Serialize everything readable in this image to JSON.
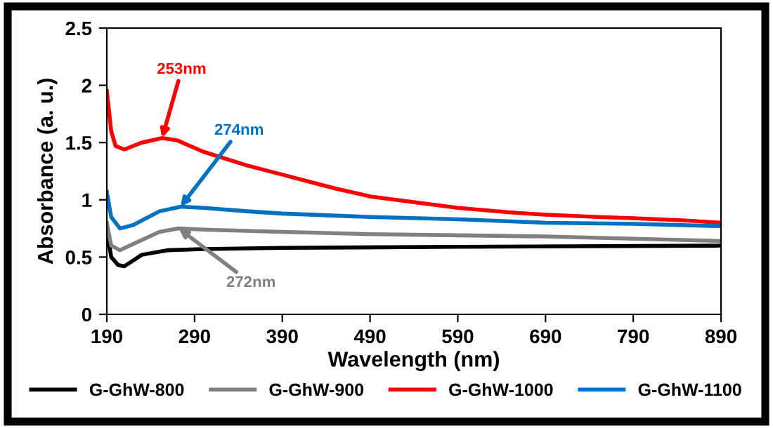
{
  "chart_data": {
    "type": "line",
    "xlabel": "Wavelength (nm)",
    "ylabel": "Absorbance (a. u.)",
    "xlim": [
      190,
      890
    ],
    "xticks": [
      190,
      290,
      390,
      490,
      590,
      690,
      790,
      890
    ],
    "ylim": [
      0,
      2.5
    ],
    "yticks": [
      0,
      0.5,
      1,
      1.5,
      2,
      2.5
    ],
    "grid": false,
    "legend": "bottom",
    "marker": "none",
    "line_style": "solid",
    "series": [
      {
        "name": "G-GhW-800",
        "color": "#000000",
        "x": [
          190,
          195,
          203,
          210,
          230,
          260,
          300,
          390,
          590,
          890
        ],
        "values": [
          0.75,
          0.5,
          0.43,
          0.42,
          0.52,
          0.56,
          0.57,
          0.58,
          0.59,
          0.6
        ]
      },
      {
        "name": "G-GhW-900",
        "color": "#808080",
        "x": [
          190,
          195,
          205,
          230,
          250,
          272,
          300,
          390,
          490,
          590,
          690,
          790,
          890
        ],
        "values": [
          0.8,
          0.6,
          0.56,
          0.65,
          0.72,
          0.75,
          0.74,
          0.72,
          0.7,
          0.69,
          0.68,
          0.66,
          0.64
        ]
      },
      {
        "name": "G-GhW-1000",
        "color": "#ff0000",
        "x": [
          190,
          195,
          200,
          210,
          230,
          253,
          270,
          300,
          350,
          390,
          450,
          490,
          550,
          590,
          650,
          690,
          750,
          790,
          850,
          890
        ],
        "values": [
          1.95,
          1.6,
          1.47,
          1.44,
          1.5,
          1.54,
          1.52,
          1.42,
          1.3,
          1.22,
          1.1,
          1.03,
          0.97,
          0.93,
          0.89,
          0.87,
          0.85,
          0.84,
          0.82,
          0.8
        ]
      },
      {
        "name": "G-GhW-1100",
        "color": "#0070c0",
        "x": [
          190,
          195,
          205,
          220,
          250,
          274,
          300,
          350,
          390,
          490,
          590,
          690,
          790,
          890
        ],
        "values": [
          1.07,
          0.85,
          0.75,
          0.78,
          0.9,
          0.94,
          0.93,
          0.9,
          0.88,
          0.85,
          0.83,
          0.8,
          0.79,
          0.77
        ]
      }
    ],
    "annotations": [
      {
        "text": "253nm",
        "x": 253,
        "y": 1.54
      },
      {
        "text": "274nm",
        "x": 274,
        "y": 0.94
      },
      {
        "text": "272nm",
        "x": 272,
        "y": 0.75
      }
    ]
  }
}
